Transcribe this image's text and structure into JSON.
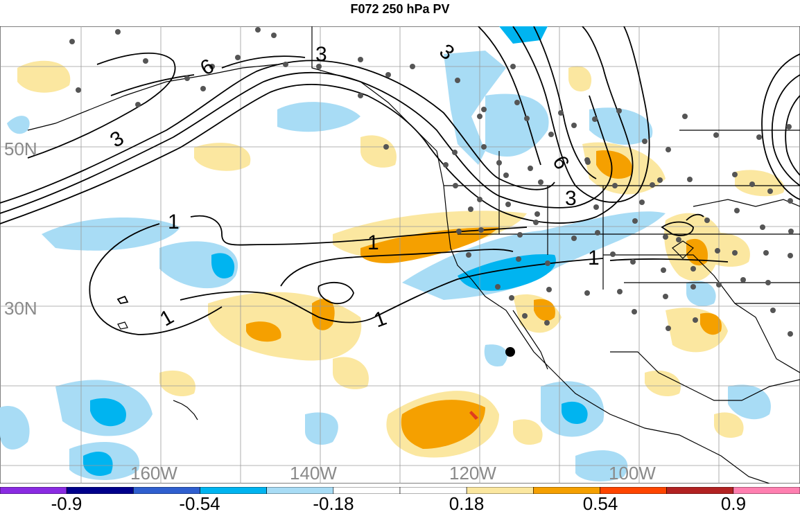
{
  "title": "F072 250 hPa PV",
  "map": {
    "lat_labels": [
      "50N",
      "30N"
    ],
    "lon_labels": [
      "160W",
      "140W",
      "120W",
      "100W"
    ],
    "contour_labels": [
      "6",
      "3",
      "3",
      "3",
      "6",
      "3",
      "1",
      "1",
      "1",
      "1",
      "1"
    ],
    "station_marker": "single black dot over the Pacific west of Baja California"
  },
  "colorbar": {
    "labels": [
      "-0.9",
      "-0.54",
      "-0.18",
      "0.18",
      "0.54",
      "0.9"
    ],
    "colors": [
      "#8a2be2",
      "#00008b",
      "#2f5fcf",
      "#00b4f0",
      "#a8dcf5",
      "#ffffff",
      "#ffffff",
      "#fbe7a0",
      "#f5a000",
      "#ff4500",
      "#b22222",
      "#ff7fb0"
    ],
    "negative_colors": {
      "light": "#a8dcf5",
      "medium": "#00b4f0"
    },
    "positive_colors": {
      "light": "#fbe7a0",
      "medium": "#f5a000",
      "strong": "#e03c1e"
    }
  }
}
